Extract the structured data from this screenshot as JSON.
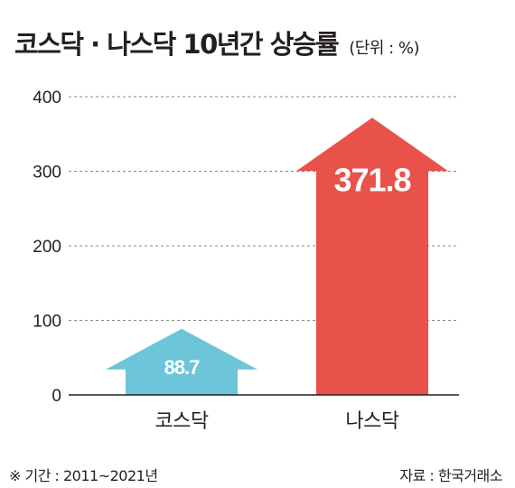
{
  "header": {
    "title": "코스닥 · 나스닥 10년간 상승률",
    "unit": "(단위 : %)"
  },
  "chart_data": {
    "type": "bar",
    "categories": [
      "코스닥",
      "나스닥"
    ],
    "values": [
      88.7,
      371.8
    ],
    "value_labels": [
      "88.7",
      "371.8"
    ],
    "title": "코스닥 · 나스닥 10년간 상승률",
    "ylabel": "",
    "xlabel": "",
    "ylim": [
      0,
      400
    ],
    "yticks": [
      "0",
      "100",
      "200",
      "300",
      "400"
    ],
    "grid": true,
    "bar_shape": "arrow",
    "colors": [
      "#6cc5d9",
      "#e8524a"
    ]
  },
  "footer": {
    "period": "※ 기간 : 2011~2021년",
    "source": "자료 : 한국거래소"
  }
}
